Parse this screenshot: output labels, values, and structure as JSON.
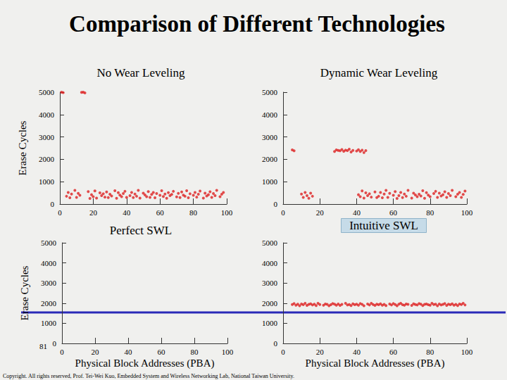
{
  "title": "Comparison of Different Technologies",
  "footer": {
    "page": "81",
    "copyright": "Copyright. All rights reserved, Prof. Tei-Wei Kuo, Embedded System and Wireless Networking Lab, National Taiwan University."
  },
  "chart_data": [
    {
      "type": "scatter",
      "title": "No Wear Leveling",
      "ylabel": "Erase Cycles",
      "color": "#dd2020",
      "marker": "circle",
      "grid": false,
      "xlim": [
        0,
        100
      ],
      "xticks": [
        0,
        20,
        40,
        60,
        80,
        100
      ],
      "ylim": [
        0,
        5000
      ],
      "yticks": [
        0,
        1000,
        2000,
        3000,
        4000,
        5000
      ],
      "x": [
        1,
        2,
        13,
        14,
        15,
        4,
        5,
        6,
        7,
        9,
        10,
        11,
        12,
        17,
        18,
        19,
        20,
        21,
        22,
        24,
        25,
        26,
        27,
        28,
        29,
        30,
        31,
        33,
        34,
        35,
        36,
        37,
        38,
        39,
        40,
        42,
        43,
        44,
        45,
        46,
        47,
        48,
        50,
        51,
        52,
        53,
        54,
        55,
        56,
        57,
        58,
        60,
        61,
        62,
        63,
        64,
        65,
        66,
        67,
        68,
        70,
        71,
        72,
        73,
        74,
        75,
        76,
        77,
        78,
        80,
        81,
        82,
        83,
        84,
        86,
        87,
        88,
        89,
        90,
        91,
        92,
        93,
        94,
        96,
        97,
        98
      ],
      "values": [
        5000,
        4980,
        4990,
        5000,
        4970,
        350,
        520,
        280,
        450,
        610,
        300,
        480,
        390,
        560,
        250,
        420,
        330,
        590,
        270,
        500,
        380,
        460,
        310,
        540,
        290,
        440,
        360,
        600,
        260,
        510,
        400,
        330,
        470,
        570,
        300,
        380,
        520,
        290,
        450,
        350,
        610,
        270,
        490,
        410,
        330,
        560,
        300,
        430,
        520,
        280,
        470,
        390,
        600,
        340,
        450,
        260,
        510,
        380,
        430,
        570,
        320,
        480,
        290,
        540,
        400,
        350,
        600,
        280,
        460,
        390,
        520,
        310,
        440,
        580,
        270,
        490,
        360,
        420,
        550,
        300,
        470,
        380,
        610,
        330,
        440,
        520
      ]
    },
    {
      "type": "scatter",
      "title": "Dynamic Wear Leveling",
      "color": "#dd2020",
      "marker": "circle",
      "grid": false,
      "xlim": [
        0,
        100
      ],
      "xticks": [
        0,
        20,
        40,
        60,
        80,
        100
      ],
      "ylim": [
        0,
        5000
      ],
      "yticks": [
        0,
        1000,
        2000,
        3000,
        4000,
        5000
      ],
      "x": [
        5,
        6,
        10,
        11,
        12,
        13,
        14,
        15,
        16,
        28,
        29,
        30,
        31,
        32,
        33,
        34,
        35,
        36,
        37,
        38,
        40,
        41,
        42,
        43,
        44,
        45,
        41,
        42,
        43,
        44,
        45,
        46,
        47,
        48,
        50,
        51,
        52,
        53,
        54,
        55,
        56,
        57,
        58,
        60,
        61,
        62,
        63,
        64,
        65,
        66,
        67,
        68,
        70,
        71,
        72,
        73,
        74,
        75,
        76,
        77,
        78,
        79,
        80,
        82,
        83,
        84,
        85,
        86,
        87,
        88,
        89,
        90,
        91,
        92,
        94,
        95,
        96,
        97,
        98,
        99
      ],
      "values": [
        2420,
        2380,
        450,
        300,
        520,
        380,
        260,
        490,
        350,
        2350,
        2420,
        2400,
        2380,
        2440,
        2360,
        2410,
        2390,
        2450,
        2330,
        2400,
        2370,
        2430,
        2350,
        2410,
        2300,
        2390,
        420,
        330,
        590,
        270,
        500,
        380,
        460,
        310,
        540,
        290,
        350,
        520,
        280,
        450,
        610,
        300,
        480,
        390,
        560,
        250,
        380,
        520,
        290,
        450,
        350,
        610,
        270,
        490,
        410,
        330,
        440,
        360,
        600,
        260,
        510,
        400,
        330,
        470,
        570,
        300,
        490,
        360,
        420,
        550,
        300,
        470,
        380,
        610,
        330,
        440,
        520,
        300,
        430,
        580
      ]
    },
    {
      "type": "scatter",
      "title": "Perfect SWL",
      "ylabel": "Erase Cycles",
      "xlabel": "Physical Block Addresses (PBA)",
      "color": "#dd2020",
      "marker": "circle",
      "grid": false,
      "xlim": [
        0,
        100
      ],
      "xticks": [
        0,
        20,
        40,
        60,
        80,
        100
      ],
      "ylim": [
        0,
        5000
      ],
      "yticks": [
        0,
        1000,
        2000,
        3000,
        4000,
        5000
      ],
      "x": [],
      "values": []
    },
    {
      "type": "scatter",
      "title": "Intuitive SWL",
      "xlabel": "Physical Block Addresses (PBA)",
      "color": "#dd2020",
      "marker": "circle",
      "grid": false,
      "xlim": [
        0,
        100
      ],
      "xticks": [
        0,
        20,
        40,
        60,
        80,
        100
      ],
      "ylim": [
        0,
        5000
      ],
      "yticks": [
        0,
        1000,
        2000,
        3000,
        4000,
        5000
      ],
      "x": [
        5,
        6,
        7,
        8,
        9,
        10,
        11,
        12,
        13,
        14,
        15,
        16,
        17,
        18,
        19,
        20,
        22,
        23,
        24,
        25,
        26,
        27,
        28,
        29,
        30,
        31,
        32,
        34,
        35,
        36,
        37,
        38,
        39,
        40,
        41,
        42,
        43,
        44,
        46,
        47,
        48,
        49,
        50,
        51,
        52,
        53,
        54,
        55,
        56,
        58,
        59,
        60,
        61,
        62,
        63,
        64,
        65,
        66,
        67,
        68,
        70,
        71,
        72,
        73,
        74,
        75,
        76,
        77,
        78,
        79,
        80,
        81,
        82,
        83,
        84,
        85,
        86,
        87,
        88,
        89,
        90,
        91,
        92,
        93,
        94,
        95,
        96,
        97,
        98,
        99
      ],
      "values": [
        1930,
        1980,
        1900,
        1950,
        1870,
        1960,
        1920,
        1990,
        1890,
        1940,
        1970,
        1910,
        1950,
        1880,
        1990,
        1930,
        1900,
        1960,
        1940,
        1870,
        1920,
        1980,
        1950,
        1900,
        1960,
        1890,
        1940,
        1990,
        1910,
        1930,
        1880,
        1970,
        1920,
        1950,
        1900,
        1980,
        1940,
        1870,
        1960,
        1910,
        1990,
        1930,
        1890,
        1950,
        1920,
        1970,
        1900,
        1940,
        1880,
        1960,
        1910,
        1980,
        1930,
        1870,
        1950,
        1990,
        1920,
        1900,
        1960,
        1940,
        1890,
        1970,
        1930,
        1910,
        1980,
        1950,
        1880,
        1940,
        1960,
        1920,
        1900,
        1990,
        1930,
        1950,
        1870,
        1960,
        1910,
        1940,
        1980,
        1890,
        1950,
        1920,
        1970,
        1900,
        1940,
        1880,
        1960,
        1930,
        1990,
        1910
      ]
    }
  ]
}
